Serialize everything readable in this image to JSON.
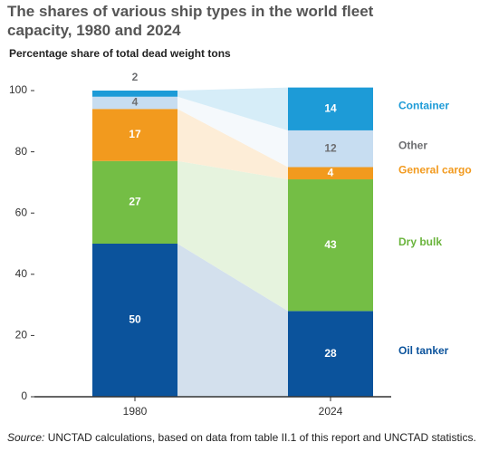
{
  "chart_data": {
    "type": "stacked-bar",
    "title": "The shares of various ship types in the world fleet capacity, 1980 and 2024",
    "subtitle": "Percentage share of  total dead weight tons",
    "source_label": "Source:",
    "source": "UNCTAD calculations, based on data from table II.1 of this report and UNCTAD statistics.",
    "categories": [
      "1980",
      "2024"
    ],
    "series": [
      {
        "name": "Oil tanker",
        "color": "#0b539c",
        "label_color": "#0b539c",
        "values": [
          50,
          28
        ]
      },
      {
        "name": "Dry bulk",
        "color": "#74be45",
        "label_color": "#6ab43c",
        "values": [
          27,
          43
        ]
      },
      {
        "name": "General cargo",
        "color": "#f29a1e",
        "label_color": "#f29a1e",
        "values": [
          17,
          4
        ]
      },
      {
        "name": "Other",
        "color": "#c7ddf1",
        "label_color": "#6d6e71",
        "values": [
          4,
          12
        ]
      },
      {
        "name": "Container",
        "color": "#1d9bd7",
        "label_color": "#1d9bd7",
        "values": [
          2,
          14
        ]
      }
    ],
    "ylim": [
      0,
      100
    ],
    "yticks": [
      0,
      20,
      40,
      60,
      80,
      100
    ]
  }
}
